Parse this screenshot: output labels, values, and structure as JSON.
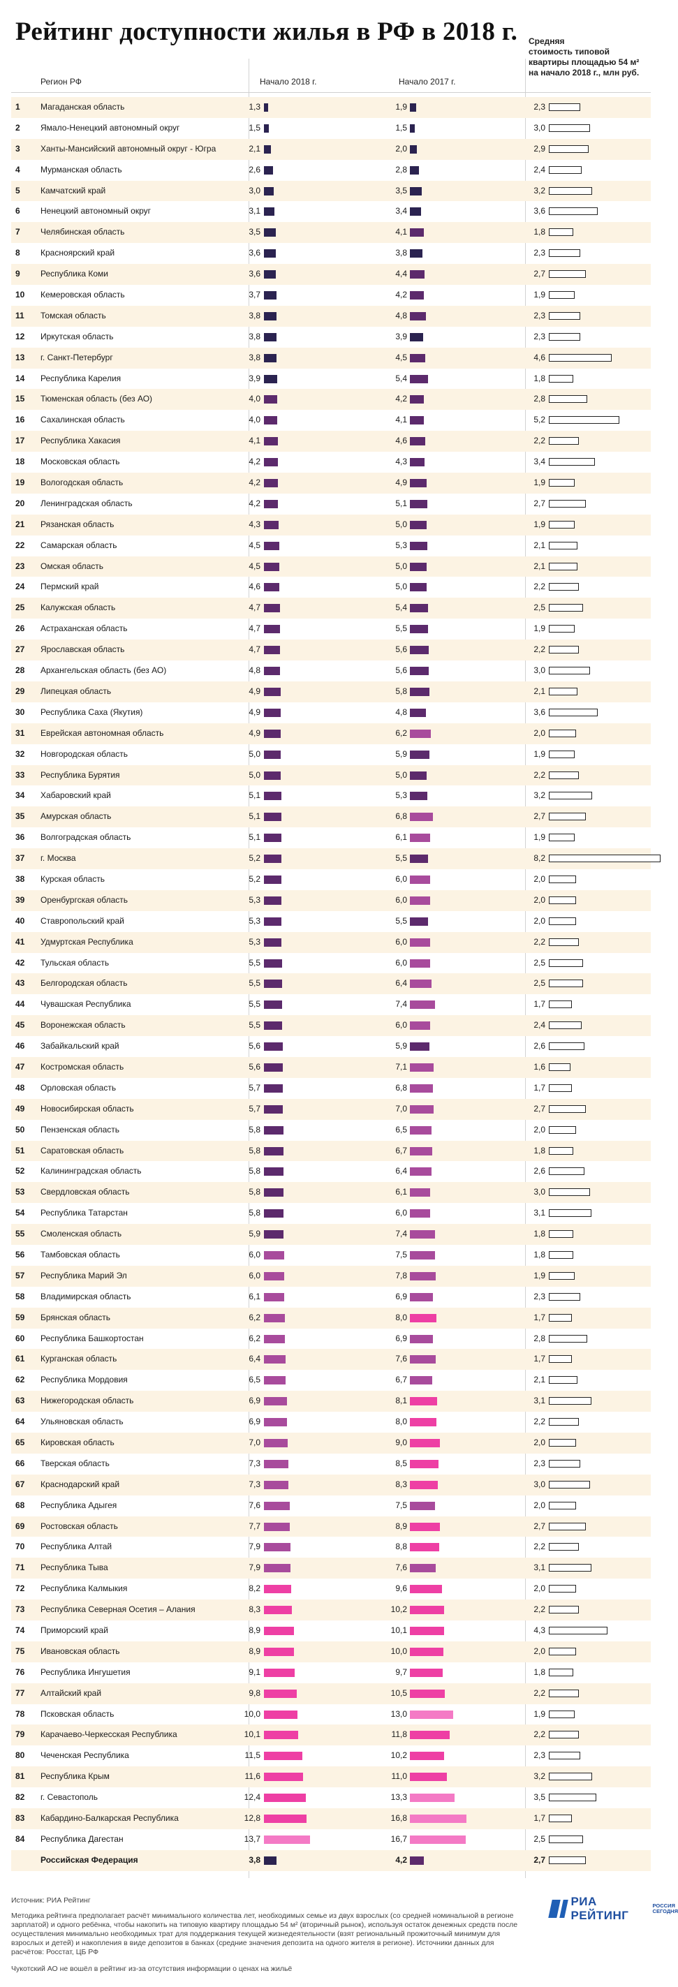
{
  "title": "Рейтинг доступности жилья в РФ в 2018 г.",
  "headers": {
    "region": "Регион РФ",
    "start2018": "Начало 2018 г.",
    "start2017": "Начало 2017 г.",
    "price_lines": [
      "Средняя",
      "стоимость типовой",
      "квартиры площадью 54 м²",
      "на начало 2018 г., млн руб."
    ]
  },
  "chart_data": {
    "type": "table",
    "title": "Рейтинг доступности жилья в РФ в 2018 г.",
    "columns": [
      "Регион РФ",
      "Начало 2018 г.",
      "Начало 2017 г.",
      "Средняя стоимость типовой квартиры площадью 54 м² на начало 2018 г., млн руб."
    ],
    "colors": [
      "#2b2350",
      "#5c2a6c",
      "#a84b9c",
      "#ee3fa4",
      "#f47ac5"
    ],
    "rows": [
      {
        "rank": "1",
        "region": "Магаданская область",
        "v2018": "1,3",
        "v2017": "1,9",
        "price": "2,3"
      },
      {
        "rank": "2",
        "region": "Ямало-Ненецкий автономный округ",
        "v2018": "1,5",
        "v2017": "1,5",
        "price": "3,0"
      },
      {
        "rank": "3",
        "region": "Ханты-Мансийский автономный округ - Югра",
        "v2018": "2,1",
        "v2017": "2,0",
        "price": "2,9"
      },
      {
        "rank": "4",
        "region": "Мурманская область",
        "v2018": "2,6",
        "v2017": "2,8",
        "price": "2,4"
      },
      {
        "rank": "5",
        "region": "Камчатский край",
        "v2018": "3,0",
        "v2017": "3,5",
        "price": "3,2"
      },
      {
        "rank": "6",
        "region": "Ненецкий автономный округ",
        "v2018": "3,1",
        "v2017": "3,4",
        "price": "3,6"
      },
      {
        "rank": "7",
        "region": "Челябинская область",
        "v2018": "3,5",
        "v2017": "4,1",
        "price": "1,8"
      },
      {
        "rank": "8",
        "region": "Красноярский край",
        "v2018": "3,6",
        "v2017": "3,8",
        "price": "2,3"
      },
      {
        "rank": "9",
        "region": "Республика Коми",
        "v2018": "3,6",
        "v2017": "4,4",
        "price": "2,7"
      },
      {
        "rank": "10",
        "region": "Кемеровская область",
        "v2018": "3,7",
        "v2017": "4,2",
        "price": "1,9"
      },
      {
        "rank": "11",
        "region": "Томская область",
        "v2018": "3,8",
        "v2017": "4,8",
        "price": "2,3"
      },
      {
        "rank": "12",
        "region": "Иркутская область",
        "v2018": "3,8",
        "v2017": "3,9",
        "price": "2,3"
      },
      {
        "rank": "13",
        "region": "г. Санкт-Петербург",
        "v2018": "3,8",
        "v2017": "4,5",
        "price": "4,6"
      },
      {
        "rank": "14",
        "region": "Республика Карелия",
        "v2018": "3,9",
        "v2017": "5,4",
        "price": "1,8"
      },
      {
        "rank": "15",
        "region": "Тюменская область (без АО)",
        "v2018": "4,0",
        "v2017": "4,2",
        "price": "2,8"
      },
      {
        "rank": "16",
        "region": "Сахалинская область",
        "v2018": "4,0",
        "v2017": "4,1",
        "price": "5,2"
      },
      {
        "rank": "17",
        "region": "Республика Хакасия",
        "v2018": "4,1",
        "v2017": "4,6",
        "price": "2,2"
      },
      {
        "rank": "18",
        "region": "Московская область",
        "v2018": "4,2",
        "v2017": "4,3",
        "price": "3,4"
      },
      {
        "rank": "19",
        "region": "Вологодская область",
        "v2018": "4,2",
        "v2017": "4,9",
        "price": "1,9"
      },
      {
        "rank": "20",
        "region": "Ленинградская область",
        "v2018": "4,2",
        "v2017": "5,1",
        "price": "2,7"
      },
      {
        "rank": "21",
        "region": "Рязанская область",
        "v2018": "4,3",
        "v2017": "5,0",
        "price": "1,9"
      },
      {
        "rank": "22",
        "region": "Самарская область",
        "v2018": "4,5",
        "v2017": "5,3",
        "price": "2,1"
      },
      {
        "rank": "23",
        "region": "Омская область",
        "v2018": "4,5",
        "v2017": "5,0",
        "price": "2,1"
      },
      {
        "rank": "24",
        "region": "Пермский край",
        "v2018": "4,6",
        "v2017": "5,0",
        "price": "2,2"
      },
      {
        "rank": "25",
        "region": "Калужская область",
        "v2018": "4,7",
        "v2017": "5,4",
        "price": "2,5"
      },
      {
        "rank": "26",
        "region": "Астраханская область",
        "v2018": "4,7",
        "v2017": "5,5",
        "price": "1,9"
      },
      {
        "rank": "27",
        "region": "Ярославская область",
        "v2018": "4,7",
        "v2017": "5,6",
        "price": "2,2"
      },
      {
        "rank": "28",
        "region": "Архангельская область (без АО)",
        "v2018": "4,8",
        "v2017": "5,6",
        "price": "3,0"
      },
      {
        "rank": "29",
        "region": "Липецкая область",
        "v2018": "4,9",
        "v2017": "5,8",
        "price": "2,1"
      },
      {
        "rank": "30",
        "region": "Республика Саха (Якутия)",
        "v2018": "4,9",
        "v2017": "4,8",
        "price": "3,6"
      },
      {
        "rank": "31",
        "region": "Еврейская автономная область",
        "v2018": "4,9",
        "v2017": "6,2",
        "price": "2,0"
      },
      {
        "rank": "32",
        "region": "Новгородская область",
        "v2018": "5,0",
        "v2017": "5,9",
        "price": "1,9"
      },
      {
        "rank": "33",
        "region": "Республика Бурятия",
        "v2018": "5,0",
        "v2017": "5,0",
        "price": "2,2"
      },
      {
        "rank": "34",
        "region": "Хабаровский край",
        "v2018": "5,1",
        "v2017": "5,3",
        "price": "3,2"
      },
      {
        "rank": "35",
        "region": "Амурская область",
        "v2018": "5,1",
        "v2017": "6,8",
        "price": "2,7"
      },
      {
        "rank": "36",
        "region": "Волгоградская область",
        "v2018": "5,1",
        "v2017": "6,1",
        "price": "1,9"
      },
      {
        "rank": "37",
        "region": "г. Москва",
        "v2018": "5,2",
        "v2017": "5,5",
        "price": "8,2"
      },
      {
        "rank": "38",
        "region": "Курская область",
        "v2018": "5,2",
        "v2017": "6,0",
        "price": "2,0"
      },
      {
        "rank": "39",
        "region": "Оренбургская область",
        "v2018": "5,3",
        "v2017": "6,0",
        "price": "2,0"
      },
      {
        "rank": "40",
        "region": "Ставропольский край",
        "v2018": "5,3",
        "v2017": "5,5",
        "price": "2,0"
      },
      {
        "rank": "41",
        "region": "Удмуртская Республика",
        "v2018": "5,3",
        "v2017": "6,0",
        "price": "2,2"
      },
      {
        "rank": "42",
        "region": "Тульская область",
        "v2018": "5,5",
        "v2017": "6,0",
        "price": "2,5"
      },
      {
        "rank": "43",
        "region": "Белгородская область",
        "v2018": "5,5",
        "v2017": "6,4",
        "price": "2,5"
      },
      {
        "rank": "44",
        "region": "Чувашская Республика",
        "v2018": "5,5",
        "v2017": "7,4",
        "price": "1,7"
      },
      {
        "rank": "45",
        "region": "Воронежская область",
        "v2018": "5,5",
        "v2017": "6,0",
        "price": "2,4"
      },
      {
        "rank": "46",
        "region": "Забайкальский край",
        "v2018": "5,6",
        "v2017": "5,9",
        "price": "2,6"
      },
      {
        "rank": "47",
        "region": "Костромская область",
        "v2018": "5,6",
        "v2017": "7,1",
        "price": "1,6"
      },
      {
        "rank": "48",
        "region": "Орловская область",
        "v2018": "5,7",
        "v2017": "6,8",
        "price": "1,7"
      },
      {
        "rank": "49",
        "region": "Новосибирская область",
        "v2018": "5,7",
        "v2017": "7,0",
        "price": "2,7"
      },
      {
        "rank": "50",
        "region": "Пензенская область",
        "v2018": "5,8",
        "v2017": "6,5",
        "price": "2,0"
      },
      {
        "rank": "51",
        "region": "Саратовская область",
        "v2018": "5,8",
        "v2017": "6,7",
        "price": "1,8"
      },
      {
        "rank": "52",
        "region": "Калининградская область",
        "v2018": "5,8",
        "v2017": "6,4",
        "price": "2,6"
      },
      {
        "rank": "53",
        "region": "Свердловская область",
        "v2018": "5,8",
        "v2017": "6,1",
        "price": "3,0"
      },
      {
        "rank": "54",
        "region": "Республика Татарстан",
        "v2018": "5,8",
        "v2017": "6,0",
        "price": "3,1"
      },
      {
        "rank": "55",
        "region": "Смоленская область",
        "v2018": "5,9",
        "v2017": "7,4",
        "price": "1,8"
      },
      {
        "rank": "56",
        "region": "Тамбовская область",
        "v2018": "6,0",
        "v2017": "7,5",
        "price": "1,8"
      },
      {
        "rank": "57",
        "region": "Республика Марий Эл",
        "v2018": "6,0",
        "v2017": "7,8",
        "price": "1,9"
      },
      {
        "rank": "58",
        "region": "Владимирская область",
        "v2018": "6,1",
        "v2017": "6,9",
        "price": "2,3"
      },
      {
        "rank": "59",
        "region": "Брянская область",
        "v2018": "6,2",
        "v2017": "8,0",
        "price": "1,7"
      },
      {
        "rank": "60",
        "region": "Республика Башкортостан",
        "v2018": "6,2",
        "v2017": "6,9",
        "price": "2,8"
      },
      {
        "rank": "61",
        "region": "Курганская область",
        "v2018": "6,4",
        "v2017": "7,6",
        "price": "1,7"
      },
      {
        "rank": "62",
        "region": "Республика Мордовия",
        "v2018": "6,5",
        "v2017": "6,7",
        "price": "2,1"
      },
      {
        "rank": "63",
        "region": "Нижегородская область",
        "v2018": "6,9",
        "v2017": "8,1",
        "price": "3,1"
      },
      {
        "rank": "64",
        "region": "Ульяновская область",
        "v2018": "6,9",
        "v2017": "8,0",
        "price": "2,2"
      },
      {
        "rank": "65",
        "region": "Кировская область",
        "v2018": "7,0",
        "v2017": "9,0",
        "price": "2,0"
      },
      {
        "rank": "66",
        "region": "Тверская область",
        "v2018": "7,3",
        "v2017": "8,5",
        "price": "2,3"
      },
      {
        "rank": "67",
        "region": "Краснодарский край",
        "v2018": "7,3",
        "v2017": "8,3",
        "price": "3,0"
      },
      {
        "rank": "68",
        "region": "Республика Адыгея",
        "v2018": "7,6",
        "v2017": "7,5",
        "price": "2,0"
      },
      {
        "rank": "69",
        "region": "Ростовская область",
        "v2018": "7,7",
        "v2017": "8,9",
        "price": "2,7"
      },
      {
        "rank": "70",
        "region": "Республика Алтай",
        "v2018": "7,9",
        "v2017": "8,8",
        "price": "2,2"
      },
      {
        "rank": "71",
        "region": "Республика Тыва",
        "v2018": "7,9",
        "v2017": "7,6",
        "price": "3,1"
      },
      {
        "rank": "72",
        "region": "Республика Калмыкия",
        "v2018": "8,2",
        "v2017": "9,6",
        "price": "2,0"
      },
      {
        "rank": "73",
        "region": "Республика Северная Осетия – Алания",
        "v2018": "8,3",
        "v2017": "10,2",
        "price": "2,2"
      },
      {
        "rank": "74",
        "region": "Приморский край",
        "v2018": "8,9",
        "v2017": "10,1",
        "price": "4,3"
      },
      {
        "rank": "75",
        "region": "Ивановская область",
        "v2018": "8,9",
        "v2017": "10,0",
        "price": "2,0"
      },
      {
        "rank": "76",
        "region": "Республика Ингушетия",
        "v2018": "9,1",
        "v2017": "9,7",
        "price": "1,8"
      },
      {
        "rank": "77",
        "region": "Алтайский край",
        "v2018": "9,8",
        "v2017": "10,5",
        "price": "2,2"
      },
      {
        "rank": "78",
        "region": "Псковская область",
        "v2018": "10,0",
        "v2017": "13,0",
        "price": "1,9"
      },
      {
        "rank": "79",
        "region": "Карачаево-Черкесская Республика",
        "v2018": "10,1",
        "v2017": "11,8",
        "price": "2,2"
      },
      {
        "rank": "80",
        "region": "Чеченская Республика",
        "v2018": "11,5",
        "v2017": "10,2",
        "price": "2,3"
      },
      {
        "rank": "81",
        "region": "Республика Крым",
        "v2018": "11,6",
        "v2017": "11,0",
        "price": "3,2"
      },
      {
        "rank": "82",
        "region": "г. Севастополь",
        "v2018": "12,4",
        "v2017": "13,3",
        "price": "3,5"
      },
      {
        "rank": "83",
        "region": "Кабардино-Балкарская Республика",
        "v2018": "12,8",
        "v2017": "16,8",
        "price": "1,7"
      },
      {
        "rank": "84",
        "region": "Республика Дагестан",
        "v2018": "13,7",
        "v2017": "16,7",
        "price": "2,5"
      }
    ],
    "total": {
      "region": "Российская Федерация",
      "v2018": "3,8",
      "v2017": "4,2",
      "price": "2,7"
    }
  },
  "source": "Источник: РИА Рейтинг",
  "method": "Методика рейтинга предполагает расчёт минимального количества лет, необходимых семье из двух взрослых (со средней номинальной в регионе зарплатой) и одного ребёнка, чтобы накопить на типовую квартиру площадью 54 м² (вторичный рынок), используя остаток денежных средств после осуществления минимально необходимых трат для поддержания текущей жизнедеятельности (взят региональный прожиточный минимум для взрослых и детей) и накопления в виде депозитов в банках (средние значения депозита на одного жителя в регионе). Источники данных для расчётов: Росстат, ЦБ РФ",
  "footnote": "Чукотский АО не вошёл в рейтинг из-за отсутствия информации о ценах на жильё",
  "logo": {
    "main": "РИА РЕЙТИНГ",
    "sub1": "РОССИЯ",
    "sub2": "СЕГОДНЯ"
  }
}
